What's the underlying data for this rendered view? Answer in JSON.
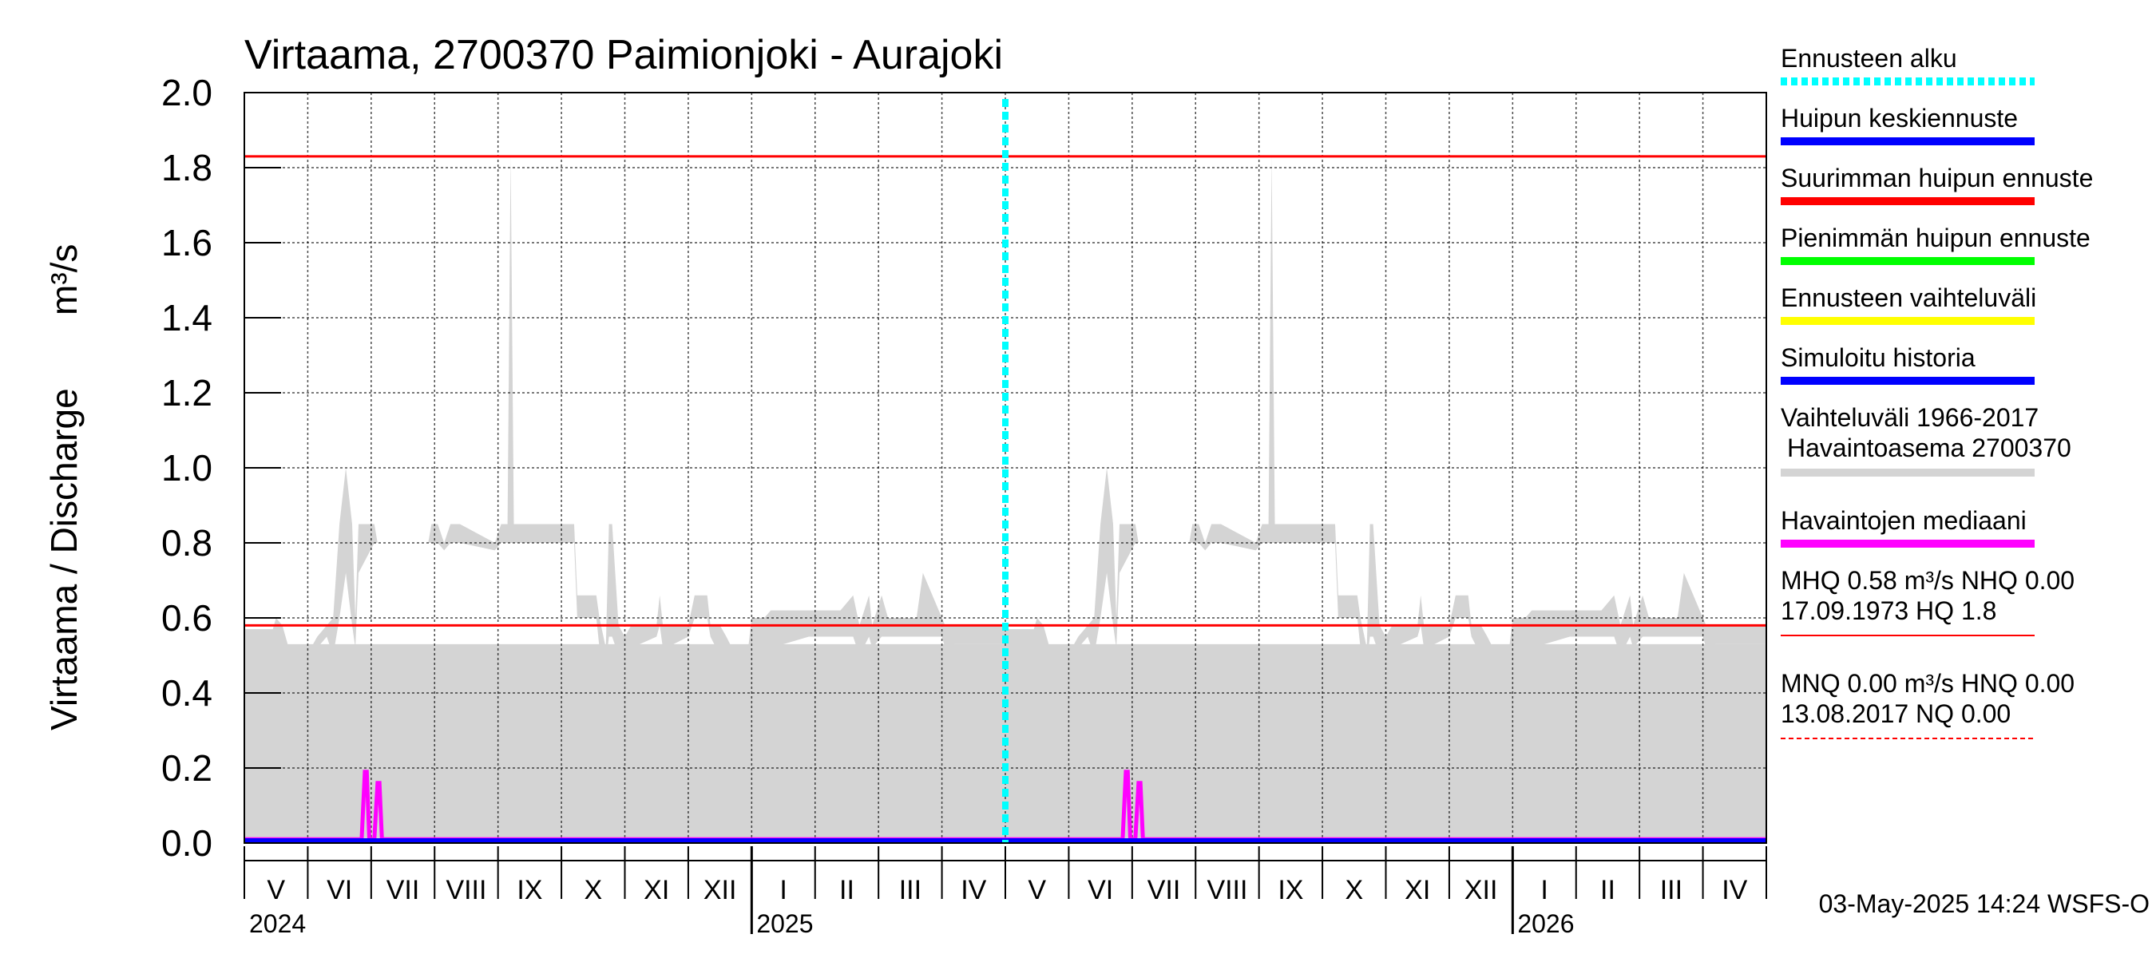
{
  "chart_data": {
    "type": "area",
    "title": "Virtaama, 2700370 Paimionjoki - Aurajoki",
    "ylabel_left": "Virtaama / Discharge",
    "ylabel_unit": "m³/s",
    "ylim": [
      0.0,
      2.0
    ],
    "yticks": [
      "0.0",
      "0.2",
      "0.4",
      "0.6",
      "0.8",
      "1.0",
      "1.2",
      "1.4",
      "1.6",
      "1.8",
      "2.0"
    ],
    "x_range_months": [
      0,
      24
    ],
    "months": [
      {
        "label": "V",
        "index": 0
      },
      {
        "label": "VI",
        "index": 1
      },
      {
        "label": "VII",
        "index": 2
      },
      {
        "label": "VIII",
        "index": 3
      },
      {
        "label": "IX",
        "index": 4
      },
      {
        "label": "X",
        "index": 5
      },
      {
        "label": "XI",
        "index": 6
      },
      {
        "label": "XII",
        "index": 7
      },
      {
        "label": "I",
        "index": 8
      },
      {
        "label": "II",
        "index": 9
      },
      {
        "label": "III",
        "index": 10
      },
      {
        "label": "IV",
        "index": 11
      },
      {
        "label": "V",
        "index": 12
      },
      {
        "label": "VI",
        "index": 13
      },
      {
        "label": "VII",
        "index": 14
      },
      {
        "label": "VIII",
        "index": 15
      },
      {
        "label": "IX",
        "index": 16
      },
      {
        "label": "X",
        "index": 17
      },
      {
        "label": "XI",
        "index": 18
      },
      {
        "label": "XII",
        "index": 19
      },
      {
        "label": "I",
        "index": 20
      },
      {
        "label": "II",
        "index": 21
      },
      {
        "label": "III",
        "index": 22
      },
      {
        "label": "IV",
        "index": 23
      }
    ],
    "years": [
      {
        "label": "2024",
        "month_index": 0
      },
      {
        "label": "2025",
        "month_index": 8
      },
      {
        "label": "2026",
        "month_index": 20
      }
    ],
    "forecast_start_month": 12,
    "hlines": [
      {
        "name": "HQ",
        "value": 1.83,
        "color": "#ff0000"
      },
      {
        "name": "MHQ",
        "value": 0.58,
        "color": "#ff0000"
      }
    ],
    "variation_band": {
      "name": "Vaihteluväli 1966-2017 Havaintoasema 2700370",
      "color": "#d4d4d4",
      "x": [
        0,
        0.45,
        0.5,
        0.6,
        0.7,
        0.8,
        1.05,
        1.15,
        1.3,
        1.4,
        1.5,
        1.6,
        1.7,
        1.75,
        1.8,
        2.05,
        2.1,
        2.9,
        2.95,
        3.05,
        3.15,
        3.25,
        3.4,
        3.95,
        4.05,
        4.15,
        4.2,
        4.25,
        4.5,
        5.2,
        5.25,
        5.55,
        5.6,
        5.7,
        5.75,
        5.8,
        5.9,
        6.0,
        6.1,
        6.5,
        6.55,
        6.6,
        6.65,
        7.0,
        7.1,
        7.3,
        7.35,
        7.5,
        7.6,
        7.9,
        8.0,
        8.2,
        8.3,
        8.9,
        9.0,
        9.4,
        9.6,
        9.7,
        9.85,
        9.9,
        10.05,
        10.15,
        10.3,
        10.6,
        10.7,
        11.0,
        11.05,
        11.1,
        11.2,
        12.0
      ],
      "upper": [
        0.57,
        0.57,
        0.6,
        0.58,
        0.52,
        0.52,
        0.52,
        0.55,
        0.58,
        0.6,
        0.85,
        1.0,
        0.85,
        0.6,
        0.85,
        0.85,
        0.8,
        0.8,
        0.85,
        0.85,
        0.8,
        0.85,
        0.85,
        0.8,
        0.85,
        0.85,
        1.83,
        0.85,
        0.85,
        0.85,
        0.66,
        0.66,
        0.6,
        0.52,
        0.85,
        0.85,
        0.58,
        0.55,
        0.58,
        0.58,
        0.66,
        0.58,
        0.58,
        0.58,
        0.66,
        0.66,
        0.58,
        0.58,
        0.55,
        0.45,
        0.6,
        0.6,
        0.62,
        0.62,
        0.62,
        0.62,
        0.66,
        0.58,
        0.66,
        0.58,
        0.66,
        0.6,
        0.6,
        0.6,
        0.72,
        0.6,
        0.58,
        0.58,
        0.58,
        0.58
      ],
      "lower": [
        0.53,
        0.35,
        0.2,
        0.27,
        0.48,
        0.48,
        0.48,
        0.52,
        0.55,
        0.5,
        0.6,
        0.72,
        0.58,
        0.52,
        0.72,
        0.8,
        0.8,
        0.8,
        0.8,
        0.8,
        0.78,
        0.8,
        0.8,
        0.78,
        0.8,
        0.8,
        0.8,
        0.8,
        0.8,
        0.8,
        0.6,
        0.6,
        0.52,
        0.48,
        0.55,
        0.55,
        0.5,
        0.5,
        0.52,
        0.55,
        0.58,
        0.52,
        0.52,
        0.55,
        0.6,
        0.6,
        0.55,
        0.5,
        0.35,
        0.35,
        0.4,
        0.5,
        0.52,
        0.55,
        0.55,
        0.55,
        0.55,
        0.5,
        0.55,
        0.52,
        0.55,
        0.55,
        0.55,
        0.55,
        0.55,
        0.55,
        0.52,
        0.52,
        0.53,
        0.53
      ],
      "repeat_period_months": 12
    },
    "median": {
      "name": "Havaintojen mediaani",
      "color": "#ff00ff",
      "x": [
        0,
        1.85,
        1.9,
        1.93,
        1.97,
        2.05,
        2.1,
        2.13,
        2.17,
        2.25,
        12.0
      ],
      "y": [
        0.01,
        0.01,
        0.19,
        0.19,
        0.01,
        0.01,
        0.16,
        0.16,
        0.01,
        0.01,
        0.01
      ],
      "repeat_period_months": 12
    },
    "simulated_history": {
      "name": "Simuloitu historia",
      "color": "#0000ff",
      "value": 0.0,
      "x_end_month": 12
    },
    "forecast_mean": {
      "name": "Huipun keskiennuste",
      "color": "#0000ff",
      "value": 0.0
    },
    "legend": [
      {
        "label": "Ennusteen alku",
        "color": "#00ffff",
        "style": "dotted"
      },
      {
        "label": "Huipun keskiennuste",
        "color": "#0000ff",
        "style": "solid"
      },
      {
        "label": "Suurimman huipun ennuste",
        "color": "#ff0000",
        "style": "solid"
      },
      {
        "label": "Pienimmän huipun ennuste",
        "color": "#00ff00",
        "style": "solid"
      },
      {
        "label": "Ennusteen vaihteluväli",
        "color": "#ffff00",
        "style": "solid"
      },
      {
        "label": "Simuloitu historia",
        "color": "#0000ff",
        "style": "solid"
      },
      {
        "label": "Vaihteluväli 1966-2017",
        "label2": "Havaintoasema 2700370",
        "color": "#d4d4d4",
        "style": "solid"
      },
      {
        "label": "Havaintojen mediaani",
        "color": "#ff00ff",
        "style": "solid"
      },
      {
        "label": "MHQ 0.58 m³/s NHQ 0.00",
        "label2": "17.09.1973 HQ  1.8",
        "color": "#ff0000",
        "style": "thin"
      },
      {
        "label": "MNQ 0.00 m³/s HNQ 0.00",
        "label2": "13.08.2017 NQ 0.00",
        "color": "#ff0000",
        "style": "dashed"
      }
    ],
    "footer": "03-May-2025 14:24 WSFS-O"
  }
}
